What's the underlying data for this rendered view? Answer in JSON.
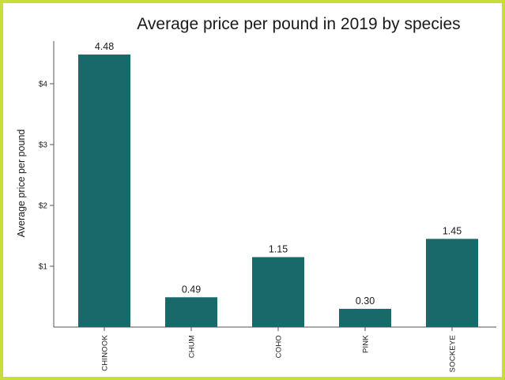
{
  "chart_data": {
    "type": "bar",
    "title": "Average price per pound in 2019 by species",
    "xlabel": "",
    "ylabel": "Average price per pound",
    "categories": [
      "CHINOOK",
      "CHUM",
      "COHO",
      "PINK",
      "SOCKEYE"
    ],
    "values": [
      4.48,
      0.49,
      1.15,
      0.3,
      1.45
    ],
    "data_labels": [
      "4.48",
      "0.49",
      "1.15",
      "0.30",
      "1.45"
    ],
    "yticks": [
      1,
      2,
      3,
      4
    ],
    "ytick_labels": [
      "$1",
      "$2",
      "$3",
      "$4"
    ],
    "ylim": [
      0,
      4.5
    ],
    "bar_color": "#186a6a",
    "frame_color": "#c8dc3c",
    "grid": false,
    "legend": "none"
  }
}
